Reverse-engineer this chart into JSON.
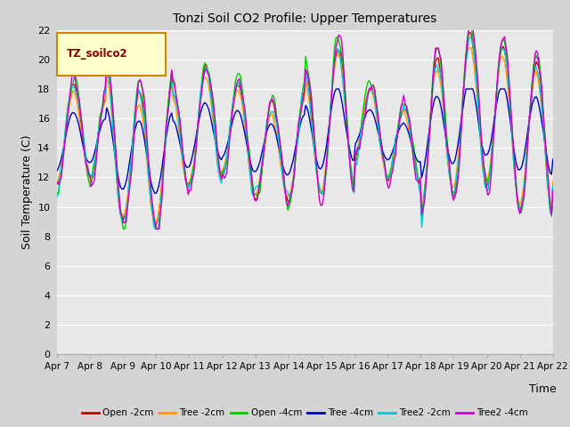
{
  "title": "Tonzi Soil CO2 Profile: Upper Temperatures",
  "ylabel": "Soil Temperature (C)",
  "xlabel": "Time",
  "xlabels": [
    "Apr 7",
    "Apr 8",
    "Apr 9",
    "Apr 10",
    "Apr 11",
    "Apr 12",
    "Apr 13",
    "Apr 14",
    "Apr 15",
    "Apr 16",
    "Apr 17",
    "Apr 18",
    "Apr 19",
    "Apr 20",
    "Apr 21",
    "Apr 22"
  ],
  "ylim": [
    0,
    22
  ],
  "yticks": [
    0,
    2,
    4,
    6,
    8,
    10,
    12,
    14,
    16,
    18,
    20,
    22
  ],
  "fig_facecolor": "#d4d4d4",
  "ax_facecolor": "#e8e8e8",
  "grid_color": "#ffffff",
  "series": [
    {
      "label": "Open -2cm",
      "color": "#cc0000"
    },
    {
      "label": "Tree -2cm",
      "color": "#ff9900"
    },
    {
      "label": "Open -4cm",
      "color": "#00cc00"
    },
    {
      "label": "Tree -4cm",
      "color": "#0000bb"
    },
    {
      "label": "Tree2 -2cm",
      "color": "#00cccc"
    },
    {
      "label": "Tree2 -4cm",
      "color": "#cc00cc"
    }
  ],
  "legend_box_facecolor": "#ffffcc",
  "legend_box_edgecolor": "#cc8800",
  "legend_text": "TZ_soilco2",
  "legend_text_color": "#880000",
  "n_points": 360,
  "days": 15
}
